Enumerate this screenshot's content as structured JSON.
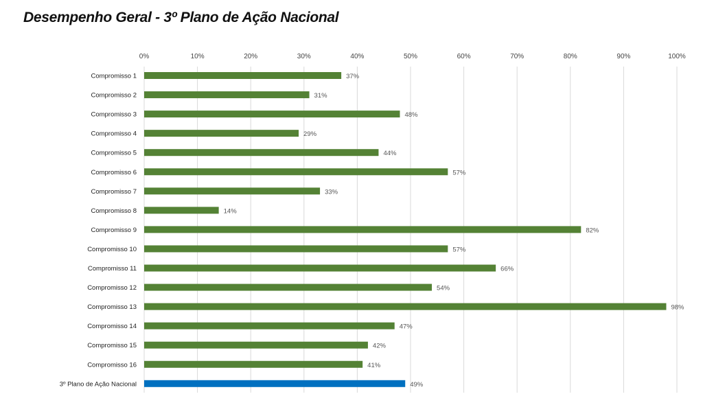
{
  "chart_data": {
    "type": "bar",
    "orientation": "horizontal",
    "title": "Desempenho Geral - 3º Plano de Ação Nacional",
    "categories": [
      "Compromisso 1",
      "Compromisso 2",
      "Compromisso 3",
      "Compromisso 4",
      "Compromisso 5",
      "Compromisso 6",
      "Compromisso 7",
      "Compromisso 8",
      "Compromisso 9",
      "Compromisso 10",
      "Compromisso 11",
      "Compromisso 12",
      "Compromisso 13",
      "Compromisso 14",
      "Compromisso 15",
      "Compromisso 16",
      "3º Plano de Ação Nacional"
    ],
    "values": [
      37,
      31,
      48,
      29,
      44,
      57,
      33,
      14,
      82,
      57,
      66,
      54,
      98,
      47,
      42,
      41,
      49
    ],
    "data_labels": [
      "37%",
      "31%",
      "48%",
      "29%",
      "44%",
      "57%",
      "33%",
      "14%",
      "82%",
      "57%",
      "66%",
      "54%",
      "98%",
      "47%",
      "42%",
      "41%",
      "49%"
    ],
    "xlim": [
      0,
      100
    ],
    "x_ticks": [
      "0%",
      "10%",
      "20%",
      "30%",
      "40%",
      "50%",
      "60%",
      "70%",
      "80%",
      "90%",
      "100%"
    ],
    "x_axis_position": "top",
    "grid": true,
    "colors": {
      "compromisso": "#548235",
      "total": "#0070C0",
      "grid": "#d9d9d9"
    }
  }
}
